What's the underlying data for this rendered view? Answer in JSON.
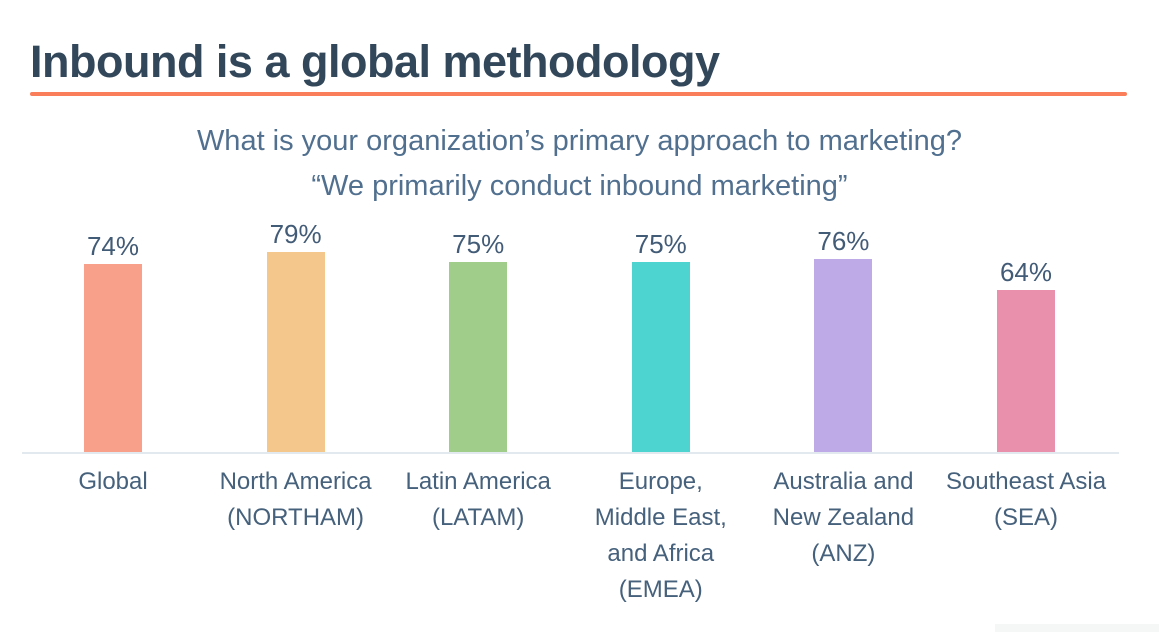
{
  "page": {
    "title": "Inbound is a global methodology"
  },
  "subtitle": {
    "line1": "What is your organization’s primary approach to marketing?",
    "line2": "“We primarily conduct inbound marketing”"
  },
  "colors": {
    "title": "#33475B",
    "divider": "#FB7E5B",
    "subtitle": "#51708F",
    "value_label": "#425B76",
    "category_label": "#46617C",
    "baseline": "#E2E9EF"
  },
  "chart_data": {
    "type": "bar",
    "title": "What is your organization’s primary approach to marketing? “We primarily conduct inbound marketing”",
    "categories": [
      "Global",
      "North America (NORTHAM)",
      "Latin America (LATAM)",
      "Europe, Middle East, and Africa (EMEA)",
      "Australia and New Zealand (ANZ)",
      "Southeast Asia (SEA)"
    ],
    "category_label_lines": [
      [
        "Global"
      ],
      [
        "North America",
        "(NORTHAM)"
      ],
      [
        "Latin America",
        "(LATAM)"
      ],
      [
        "Europe,",
        "Middle East,",
        "and Africa",
        "(EMEA)"
      ],
      [
        "Australia and",
        "New Zealand",
        "(ANZ)"
      ],
      [
        "Southeast Asia",
        "(SEA)"
      ]
    ],
    "values": [
      74,
      79,
      75,
      75,
      76,
      64
    ],
    "value_labels": [
      "74%",
      "79%",
      "75%",
      "75%",
      "76%",
      "64%"
    ],
    "bar_colors": [
      "#F9A08A",
      "#F4C78C",
      "#A0CE8A",
      "#4DD3D0",
      "#BEAAE6",
      "#E991AC"
    ],
    "ylabel": "",
    "xlabel": "",
    "ylim": [
      0,
      100
    ],
    "grid": false,
    "legend": false,
    "value_label_position": "above-bars"
  }
}
